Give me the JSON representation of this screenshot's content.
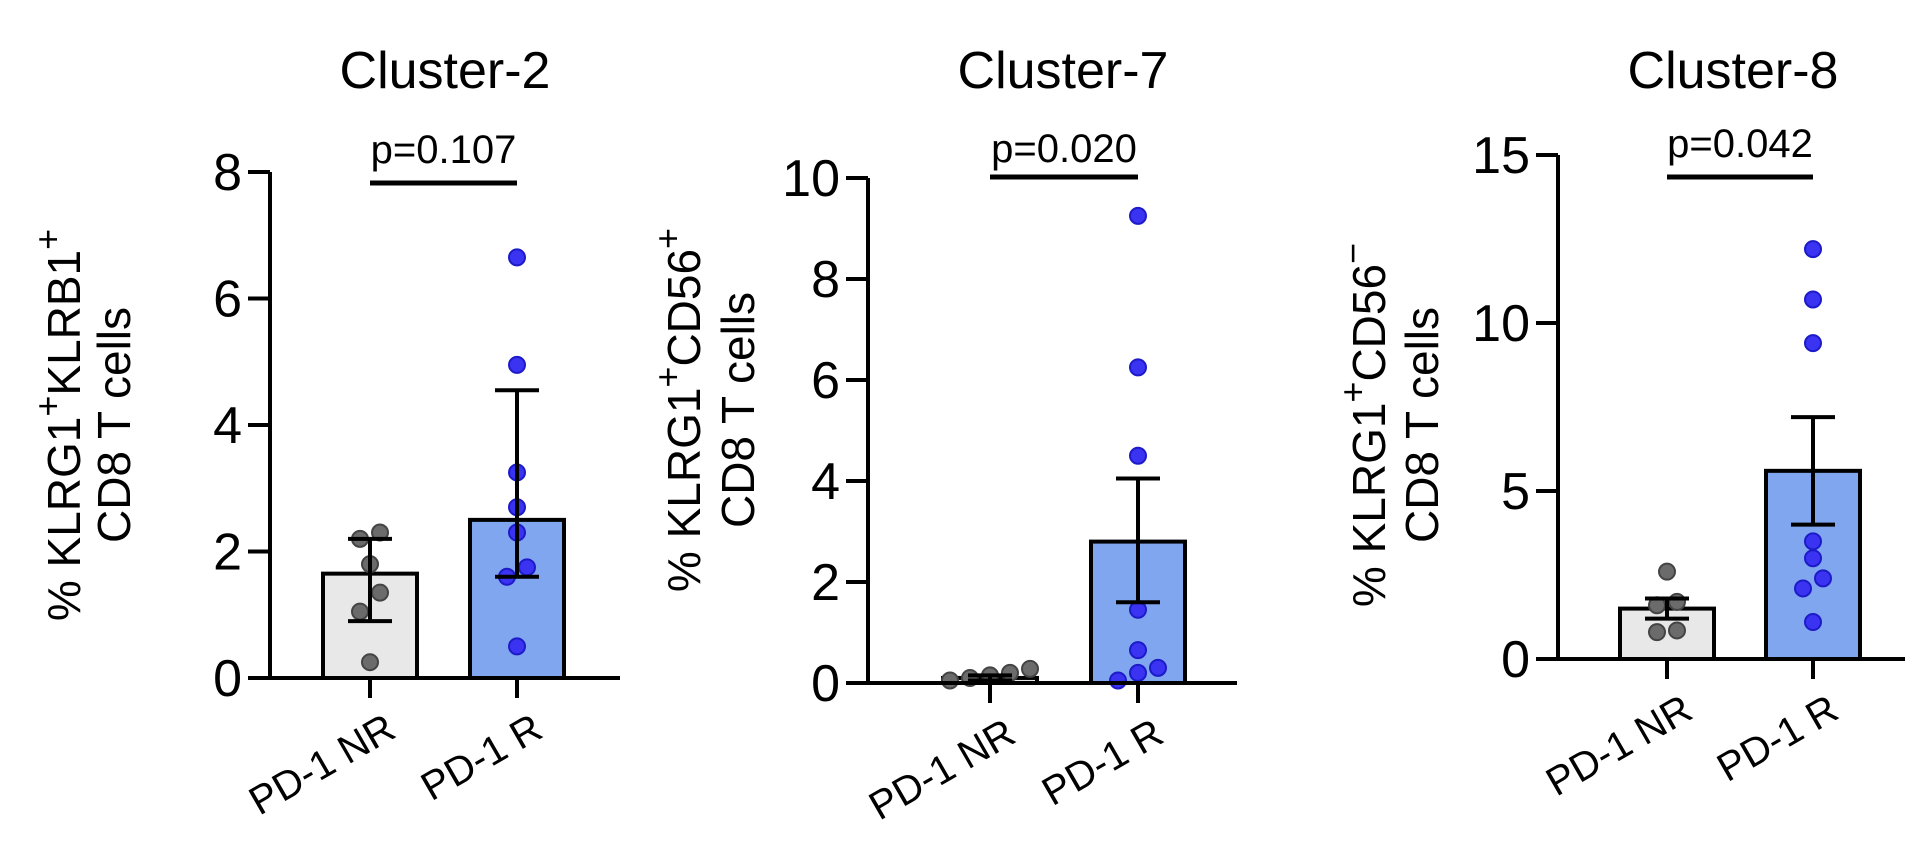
{
  "colors": {
    "nr_bar": "#e8e8e8",
    "nr_point": "#6b6b6b",
    "r_bar": "#80a6f0",
    "r_point": "#3b33f2",
    "r_point_edge": "#1d1bc8",
    "axis": "#000000"
  },
  "chart_data": [
    {
      "type": "bar",
      "title": "Cluster-2",
      "ylabel": [
        "% KLRG1",
        "+",
        "KLRB1",
        "+"
      ],
      "ylabel2": "CD8 T cells",
      "categories": [
        "PD-1 NR",
        "PD-1 R"
      ],
      "ylim": [
        0,
        8
      ],
      "yticks": [
        "0",
        "2",
        "4",
        "6",
        "8"
      ],
      "bar_values": [
        1.65,
        2.5
      ],
      "error_bars": [
        [
          0.9,
          2.2
        ],
        [
          1.6,
          4.55
        ]
      ],
      "points": [
        [
          0.25,
          1.05,
          1.35,
          1.8,
          2.2,
          2.3
        ],
        [
          0.5,
          1.6,
          1.75,
          2.3,
          2.7,
          3.25,
          4.95,
          6.65
        ]
      ],
      "p_value": "p=0.107"
    },
    {
      "type": "bar",
      "title": "Cluster-7",
      "ylabel": [
        "% KLRG1",
        "+",
        "CD56",
        "+"
      ],
      "ylabel2": "CD8 T cells",
      "categories": [
        "PD-1 NR",
        "PD-1 R"
      ],
      "ylim": [
        0,
        10
      ],
      "yticks": [
        "0",
        "2",
        "4",
        "6",
        "8",
        "10"
      ],
      "bar_values": [
        0.1,
        2.8
      ],
      "error_bars": [
        [
          0.05,
          0.15
        ],
        [
          1.6,
          4.05
        ]
      ],
      "points": [
        [
          0.05,
          0.1,
          0.15,
          0.2,
          0.28
        ],
        [
          0.05,
          0.2,
          0.3,
          0.65,
          1.45,
          4.5,
          6.25,
          9.25
        ]
      ],
      "p_value": "p=0.020"
    },
    {
      "type": "bar",
      "title": "Cluster-8",
      "ylabel": [
        "% KLRG1",
        "+",
        "CD56",
        "−"
      ],
      "ylabel2": "CD8 T cells",
      "categories": [
        "PD-1 NR",
        "PD-1 R"
      ],
      "ylim": [
        0,
        15
      ],
      "yticks": [
        "0",
        "5",
        "10",
        "15"
      ],
      "bar_values": [
        1.5,
        5.6
      ],
      "error_bars": [
        [
          1.2,
          1.8
        ],
        [
          4.0,
          7.2
        ]
      ],
      "points": [
        [
          0.8,
          0.85,
          1.6,
          1.7,
          2.6
        ],
        [
          1.1,
          2.1,
          2.4,
          3.0,
          3.5,
          9.4,
          10.7,
          12.2
        ]
      ],
      "p_value": "p=0.042"
    }
  ]
}
